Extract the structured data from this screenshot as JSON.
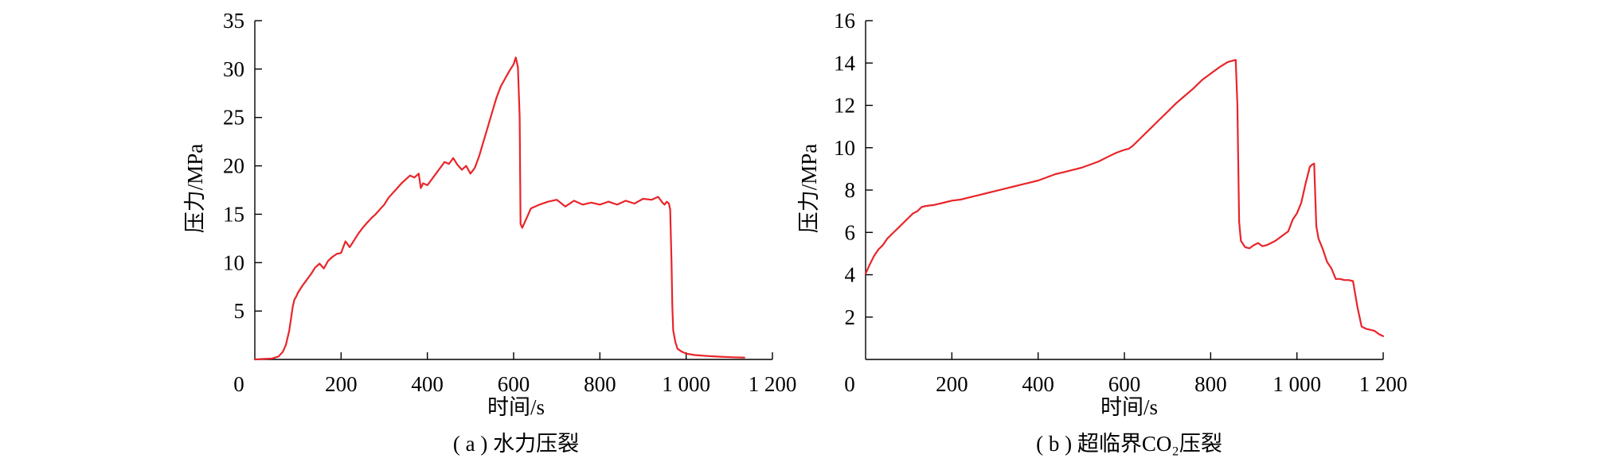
{
  "chart_data": [
    {
      "type": "line",
      "caption": "( a ) 水力压裂",
      "xlabel": "时间/s",
      "ylabel": "压力/MPa",
      "xlim": [
        0,
        1200
      ],
      "ylim": [
        0,
        35
      ],
      "x_ticks": [
        0,
        200,
        400,
        600,
        800,
        1000,
        1200
      ],
      "x_tick_labels": [
        "0",
        "200",
        "400",
        "600",
        "800",
        "1 000",
        "1 200"
      ],
      "y_ticks": [
        5,
        10,
        15,
        20,
        25,
        30,
        35
      ],
      "y_tick_labels": [
        "5",
        "10",
        "15",
        "20",
        "25",
        "30",
        "35"
      ],
      "origin_label": "0",
      "grid": false,
      "color": "#e8252a",
      "series": [
        {
          "x": [
            0,
            20,
            40,
            55,
            65,
            72,
            80,
            88,
            92,
            96,
            100,
            110,
            120,
            130,
            140,
            150,
            160,
            170,
            180,
            190,
            200,
            210,
            220,
            230,
            240,
            250,
            260,
            270,
            280,
            290,
            300,
            310,
            320,
            330,
            340,
            350,
            360,
            370,
            380,
            385,
            390,
            400,
            410,
            420,
            430,
            440,
            450,
            460,
            470,
            480,
            490,
            500,
            510,
            520,
            530,
            540,
            550,
            560,
            570,
            580,
            590,
            600,
            605,
            610,
            614,
            616,
            620,
            630,
            640,
            660,
            680,
            700,
            720,
            740,
            760,
            780,
            800,
            820,
            840,
            860,
            880,
            900,
            920,
            935,
            945,
            950,
            955,
            960,
            963,
            966,
            968,
            970,
            975,
            980,
            990,
            1000,
            1020,
            1050,
            1080,
            1110,
            1135
          ],
          "y": [
            0,
            0.05,
            0.1,
            0.3,
            0.8,
            1.5,
            3.0,
            5.5,
            6.2,
            6.5,
            6.9,
            7.6,
            8.2,
            8.8,
            9.5,
            9.9,
            9.4,
            10.2,
            10.6,
            10.9,
            11.0,
            12.2,
            11.6,
            12.3,
            13.0,
            13.6,
            14.1,
            14.6,
            15.0,
            15.5,
            16.0,
            16.7,
            17.2,
            17.7,
            18.2,
            18.6,
            19.0,
            18.8,
            19.2,
            17.7,
            18.2,
            18.0,
            18.6,
            19.2,
            19.8,
            20.4,
            20.2,
            20.8,
            20.1,
            19.6,
            20.0,
            19.2,
            19.8,
            21.0,
            22.5,
            24.0,
            25.5,
            27.0,
            28.2,
            29.0,
            29.8,
            30.5,
            31.2,
            30.2,
            25.0,
            14.0,
            13.6,
            14.6,
            15.6,
            16.0,
            16.3,
            16.5,
            15.8,
            16.4,
            16.0,
            16.2,
            16.0,
            16.3,
            16.0,
            16.4,
            16.1,
            16.6,
            16.5,
            16.8,
            16.2,
            16.0,
            16.3,
            16.1,
            15.5,
            10.0,
            5.5,
            3.0,
            1.8,
            1.1,
            0.8,
            0.6,
            0.45,
            0.35,
            0.28,
            0.22,
            0.2
          ]
        }
      ]
    },
    {
      "type": "line",
      "caption": "( b ) 超临界CO₂压裂",
      "xlabel": "时间/s",
      "ylabel": "压力/MPa",
      "xlim": [
        0,
        1200
      ],
      "ylim": [
        0,
        16
      ],
      "x_ticks": [
        0,
        200,
        400,
        600,
        800,
        1000,
        1200
      ],
      "x_tick_labels": [
        "0",
        "200",
        "400",
        "600",
        "800",
        "1 000",
        "1 200"
      ],
      "y_ticks": [
        2,
        4,
        6,
        8,
        10,
        12,
        14,
        16
      ],
      "y_tick_labels": [
        "2",
        "4",
        "6",
        "8",
        "10",
        "12",
        "14",
        "16"
      ],
      "origin_label": "0",
      "grid": false,
      "color": "#e8252a",
      "series": [
        {
          "x": [
            0,
            10,
            20,
            30,
            40,
            50,
            60,
            70,
            80,
            90,
            100,
            110,
            120,
            130,
            140,
            160,
            180,
            200,
            220,
            240,
            260,
            280,
            300,
            320,
            340,
            360,
            380,
            400,
            420,
            440,
            460,
            480,
            500,
            520,
            540,
            560,
            580,
            600,
            610,
            620,
            640,
            660,
            680,
            700,
            720,
            740,
            760,
            780,
            800,
            820,
            840,
            858,
            862,
            866,
            870,
            880,
            890,
            900,
            910,
            920,
            930,
            940,
            950,
            960,
            970,
            980,
            990,
            1000,
            1010,
            1020,
            1030,
            1035,
            1040,
            1045,
            1050,
            1060,
            1070,
            1080,
            1090,
            1100,
            1110,
            1120,
            1130,
            1140,
            1150,
            1160,
            1170,
            1180,
            1190,
            1200
          ],
          "y": [
            4.05,
            4.5,
            4.9,
            5.2,
            5.4,
            5.7,
            5.9,
            6.1,
            6.3,
            6.5,
            6.7,
            6.9,
            7.0,
            7.2,
            7.25,
            7.3,
            7.4,
            7.5,
            7.55,
            7.65,
            7.75,
            7.85,
            7.95,
            8.05,
            8.15,
            8.25,
            8.35,
            8.45,
            8.6,
            8.75,
            8.85,
            8.95,
            9.05,
            9.2,
            9.35,
            9.55,
            9.75,
            9.9,
            9.95,
            10.1,
            10.5,
            10.9,
            11.3,
            11.7,
            12.1,
            12.45,
            12.8,
            13.2,
            13.5,
            13.8,
            14.05,
            14.15,
            12.0,
            6.5,
            5.6,
            5.3,
            5.25,
            5.4,
            5.5,
            5.35,
            5.4,
            5.5,
            5.6,
            5.75,
            5.9,
            6.05,
            6.6,
            6.9,
            7.4,
            8.3,
            9.1,
            9.2,
            9.25,
            6.3,
            5.7,
            5.2,
            4.6,
            4.3,
            3.8,
            3.8,
            3.75,
            3.75,
            3.7,
            2.5,
            1.55,
            1.45,
            1.4,
            1.35,
            1.2,
            1.1
          ]
        }
      ]
    }
  ]
}
